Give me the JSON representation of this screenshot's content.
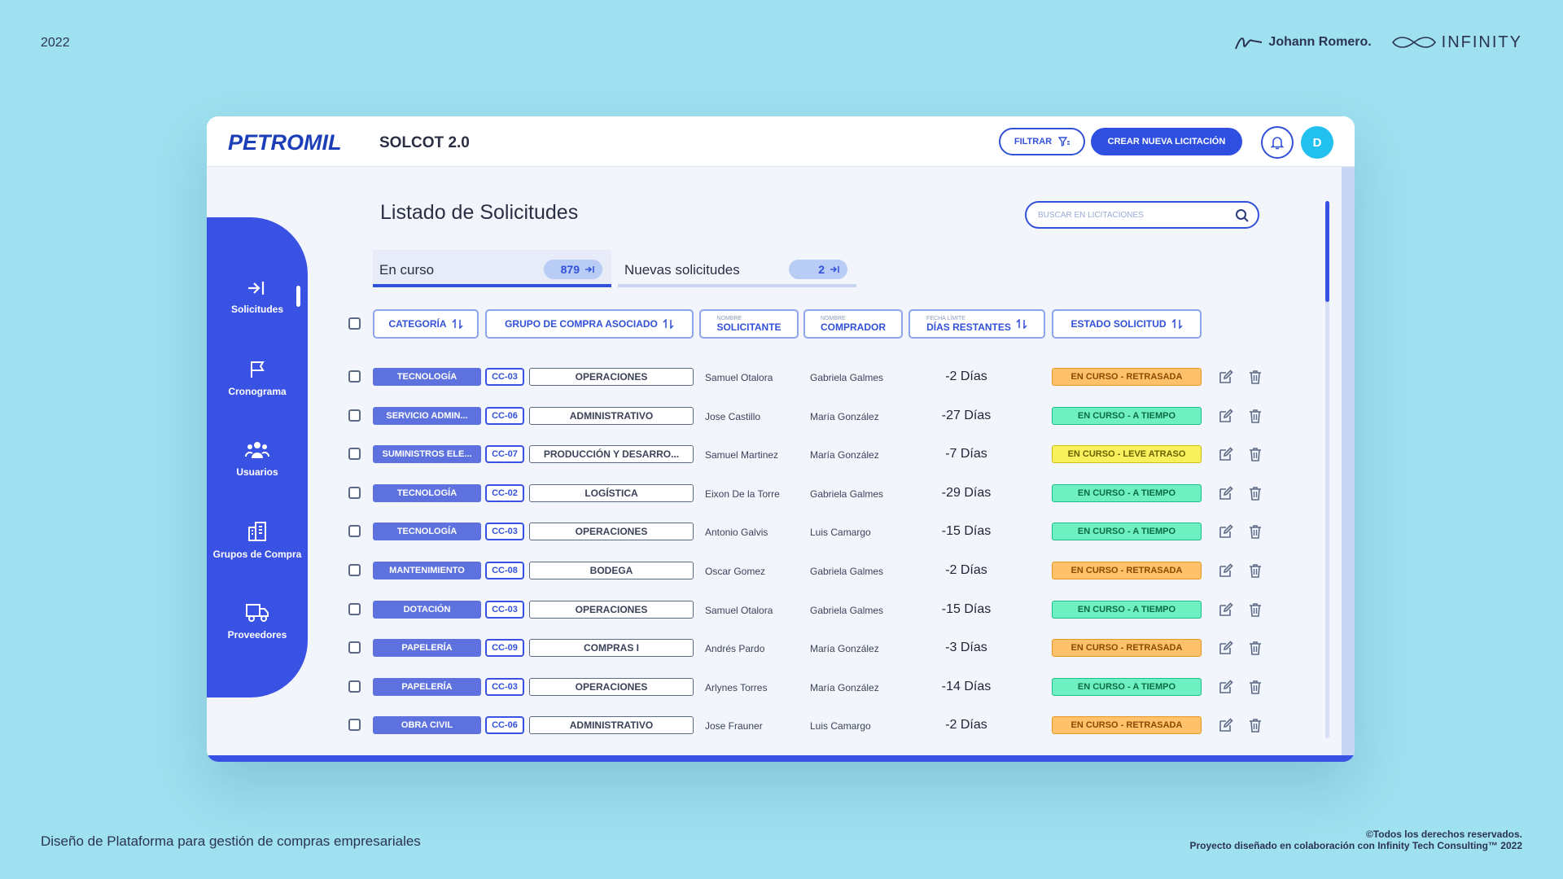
{
  "page": {
    "year": "2022",
    "author": "Johann Romero.",
    "partner": "INFINITY",
    "description": "Diseño de Plataforma para gestión de compras empresariales",
    "copyright_line1": "©Todos los derechos reservados.",
    "copyright_line2": "Proyecto diseñado en colaboración con Infinity Tech Consulting™ 2022"
  },
  "app": {
    "logo": "PETROMIL",
    "title": "SOLCOT 2.0",
    "filter_label": "FILTRAR",
    "create_label": "CREAR NUEVA LICITACIÓN",
    "avatar_initial": "D",
    "accent": "#3a52e3"
  },
  "sidebar": {
    "items": [
      {
        "label": "Solicitudes",
        "icon": "login-arrow-icon"
      },
      {
        "label": "Cronograma",
        "icon": "flag-icon"
      },
      {
        "label": "Usuarios",
        "icon": "users-icon"
      },
      {
        "label": "Grupos de Compra",
        "icon": "building-icon"
      },
      {
        "label": "Proveedores",
        "icon": "truck-icon"
      }
    ]
  },
  "main": {
    "heading": "Listado de Solicitudes",
    "search_placeholder": "BUSCAR EN LICITACIONES",
    "tabs": [
      {
        "label": "En curso",
        "count": "879"
      },
      {
        "label": "Nuevas solicitudes",
        "count": "2"
      }
    ],
    "columns": {
      "categoria": "CATEGORÍA",
      "grupo": "GRUPO DE COMPRA ASOCIADO",
      "solicitante_small": "NOMBRE",
      "solicitante": "SOLICITANTE",
      "comprador_small": "NOMBRE",
      "comprador": "COMPRADOR",
      "dias_small": "FECHA LÍMITE",
      "dias": "DÍAS RESTANTES",
      "estado": "ESTADO SOLICITUD"
    },
    "rows": [
      {
        "categoria": "TECNOLOGÍA",
        "cc": "CC-03",
        "grupo": "OPERACIONES",
        "solicitante": "Samuel Otalora",
        "comprador": "Gabriela Galmes",
        "dias": "-2 Días",
        "estado": "EN CURSO - RETRASADA",
        "status": "late"
      },
      {
        "categoria": "SERVICIO ADMIN...",
        "cc": "CC-06",
        "grupo": "ADMINISTRATIVO",
        "solicitante": "Jose Castillo",
        "comprador": "María González",
        "dias": "-27 Días",
        "estado": "EN CURSO - A TIEMPO",
        "status": "ok"
      },
      {
        "categoria": "SUMINISTROS ELE...",
        "cc": "CC-07",
        "grupo": "PRODUCCIÓN Y DESARRO...",
        "solicitante": "Samuel Martinez",
        "comprador": "María González",
        "dias": "-7 Días",
        "estado": "EN CURSO - LEVE ATRASO",
        "status": "slight"
      },
      {
        "categoria": "TECNOLOGÍA",
        "cc": "CC-02",
        "grupo": "LOGÍSTICA",
        "solicitante": "Eixon De la Torre",
        "comprador": "Gabriela Galmes",
        "dias": "-29 Días",
        "estado": "EN CURSO - A TIEMPO",
        "status": "ok"
      },
      {
        "categoria": "TECNOLOGÍA",
        "cc": "CC-03",
        "grupo": "OPERACIONES",
        "solicitante": "Antonio Galvis",
        "comprador": "Luis Camargo",
        "dias": "-15 Días",
        "estado": "EN CURSO - A TIEMPO",
        "status": "ok"
      },
      {
        "categoria": "MANTENIMIENTO",
        "cc": "CC-08",
        "grupo": "BODEGA",
        "solicitante": "Oscar Gomez",
        "comprador": "Gabriela Galmes",
        "dias": "-2 Días",
        "estado": "EN CURSO - RETRASADA",
        "status": "late"
      },
      {
        "categoria": "DOTACIÓN",
        "cc": "CC-03",
        "grupo": "OPERACIONES",
        "solicitante": "Samuel Otalora",
        "comprador": "Gabriela Galmes",
        "dias": "-15 Días",
        "estado": "EN CURSO - A TIEMPO",
        "status": "ok"
      },
      {
        "categoria": "PAPELERÍA",
        "cc": "CC-09",
        "grupo": "COMPRAS I",
        "solicitante": "Andrés Pardo",
        "comprador": "María González",
        "dias": "-3 Días",
        "estado": "EN CURSO - RETRASADA",
        "status": "late"
      },
      {
        "categoria": "PAPELERÍA",
        "cc": "CC-03",
        "grupo": "OPERACIONES",
        "solicitante": "Arlynes Torres",
        "comprador": "María González",
        "dias": "-14 Días",
        "estado": "EN CURSO - A TIEMPO",
        "status": "ok"
      },
      {
        "categoria": "OBRA CIVIL",
        "cc": "CC-06",
        "grupo": "ADMINISTRATIVO",
        "solicitante": "Jose Frauner",
        "comprador": "Luis Camargo",
        "dias": "-2 Días",
        "estado": "EN CURSO - RETRASADA",
        "status": "late"
      }
    ]
  }
}
